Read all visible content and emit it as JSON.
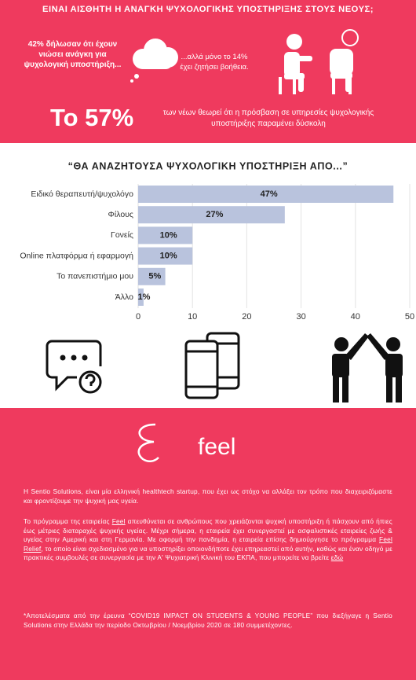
{
  "header": {
    "title": "ΕΙΝΑΙ ΑΙΣΘΗΤΗ Η ΑΝΑΓΚΗ ΨΥΧΟΛΟΓΙΚΗΣ ΥΠΟΣΤΗΡΙΞΗΣ ΣΤΟΥΣ ΝΕΟΥΣ;",
    "left_text": "42% δήλωσαν ότι έχουν νιώσει ανάγκη για ψυχολογική υποστήριξη...",
    "right_text": "...αλλά μόνο το 14% έχει ζητήσει βοήθεια.",
    "stat_big": "Το 57%",
    "stat_text": "των νέων θεωρεί ότι η πρόσβαση σε υπηρεσίες ψυχολογικής υποστήριξης παραμένει δύσκολη"
  },
  "chart_data": {
    "type": "bar",
    "orientation": "horizontal",
    "title": "“ΘΑ ΑΝΑΖΗΤΟΥΣΑ ΨΥΧΟΛΟΓΙΚΗ ΥΠΟΣΤΗΡΙΞΗ ΑΠΟ...”",
    "categories": [
      "Ειδικό θεραπευτή/ψυχολόγο",
      "Φίλους",
      "Γονείς",
      "Online πλατφόρμα ή εφαρμογή",
      "Το πανεπιστήμιο μου",
      "Άλλο"
    ],
    "values": [
      47,
      27,
      10,
      10,
      5,
      1
    ],
    "value_labels": [
      "47%",
      "27%",
      "10%",
      "10%",
      "5%",
      "1%"
    ],
    "color": "#b9c3dd",
    "xlim": [
      0,
      50
    ],
    "xticks": [
      0,
      10,
      20,
      30,
      40,
      50
    ],
    "grid": true
  },
  "footer": {
    "logo": "feel",
    "paragraph_1": "Η Sentio Solutions, είναι μία ελληνική healthtech startup, που έχει ως στόχο να αλλάξει τον τρόπο που διαχειριζόμαστε και φροντίζουμε την ψυχική μας υγεία.",
    "paragraph_2": [
      "Το πρόγραμμα της εταιρείας ",
      "Feel",
      " απευθύνεται σε ανθρώπους που χρειάζονται ψυχική υποστήριξη ή πάσχουν από ήπιες έως μέτριες διαταραχές ψυχικής υγείας. Μέχρι σήμερα, η εταιρεία έχει συνεργαστεί με ασφαλιστικές εταιρείες ζωής & υγείας στην Αμερική και στη Γερμανία. Με αφορμή την πανδημία, η εταιρεία επίσης δημιούργησε το πρόγραμμα ",
      "Feel Relief",
      ", το οποίο είναι σχεδιασμένο για να υποστηρίξει οποιονδήποτε έχει επηρεαστεί από αυτήν, καθώς και έναν οδηγό με πρακτικές συμβουλές σε συνεργασία με την Α' Ψυχιατρική Κλινική του ΕΚΠΑ,  που μπορείτε να βρείτε ",
      "εδώ"
    ],
    "note": "*Αποτελέσματα από την έρευνα “COVID19 IMPACT ON STUDENTS & YOUNG PEOPLE” που διεξήγαγε η Sentio Solutions στην Ελλάδα την περίοδο Οκτωβρίου / Νοεμβρίου 2020 σε 180 συμμετέχοντες."
  }
}
